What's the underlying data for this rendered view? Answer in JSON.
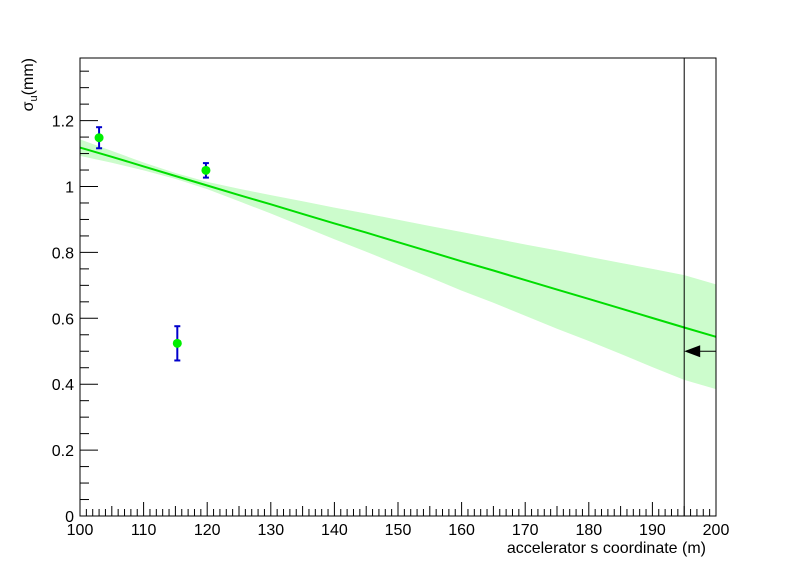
{
  "chart_data": {
    "type": "scatter",
    "title": "",
    "xlabel": "accelerator s coordinate (m)",
    "ylabel": "σ",
    "ylabel_subscript": "u",
    "ylabel_unit": "(mm)",
    "xlim": [
      100,
      200
    ],
    "ylim": [
      0,
      1.39
    ],
    "x_ticks": [
      100,
      110,
      120,
      130,
      140,
      150,
      160,
      170,
      180,
      190,
      200
    ],
    "y_ticks": [
      0,
      0.2,
      0.4,
      0.6,
      0.8,
      1,
      1.2
    ],
    "x_tick_labels": [
      "100",
      "110",
      "120",
      "130",
      "140",
      "150",
      "160",
      "170",
      "180",
      "190",
      "200"
    ],
    "y_tick_labels": [
      "0",
      "0.2",
      "0.4",
      "0.6",
      "0.8",
      "1",
      "1.2"
    ],
    "grid": false,
    "colors": {
      "points": "#00ee00",
      "errorbars": "#0000cc",
      "fit": "#00dd00",
      "band": "#ccfccc"
    },
    "points": [
      {
        "x": 103.0,
        "y": 1.148,
        "err": 0.032
      },
      {
        "x": 115.3,
        "y": 0.524,
        "err": 0.052
      },
      {
        "x": 119.8,
        "y": 1.049,
        "err": 0.022
      }
    ],
    "fit": {
      "x": [
        100,
        105,
        110,
        115,
        120,
        125,
        130,
        135,
        140,
        145,
        150,
        155,
        160,
        165,
        170,
        175,
        180,
        185,
        190,
        195,
        200
      ],
      "y": [
        1.118,
        1.09,
        1.061,
        1.032,
        1.003,
        0.974,
        0.946,
        0.917,
        0.888,
        0.86,
        0.831,
        0.802,
        0.773,
        0.745,
        0.716,
        0.687,
        0.659,
        0.63,
        0.601,
        0.572,
        0.544
      ],
      "band_upper": [
        1.143,
        1.108,
        1.073,
        1.041,
        1.014,
        0.993,
        0.974,
        0.955,
        0.936,
        0.918,
        0.899,
        0.88,
        0.862,
        0.843,
        0.824,
        0.806,
        0.787,
        0.768,
        0.75,
        0.731,
        0.703
      ],
      "band_lower": [
        1.093,
        1.072,
        1.049,
        1.023,
        0.992,
        0.955,
        0.918,
        0.879,
        0.84,
        0.802,
        0.763,
        0.724,
        0.684,
        0.647,
        0.608,
        0.568,
        0.531,
        0.492,
        0.452,
        0.413,
        0.385
      ]
    },
    "annotations": [
      {
        "type": "vertical-line",
        "x": 195
      },
      {
        "type": "arrow",
        "x_from": 200,
        "x_to": 195,
        "y": 0.5
      }
    ]
  }
}
